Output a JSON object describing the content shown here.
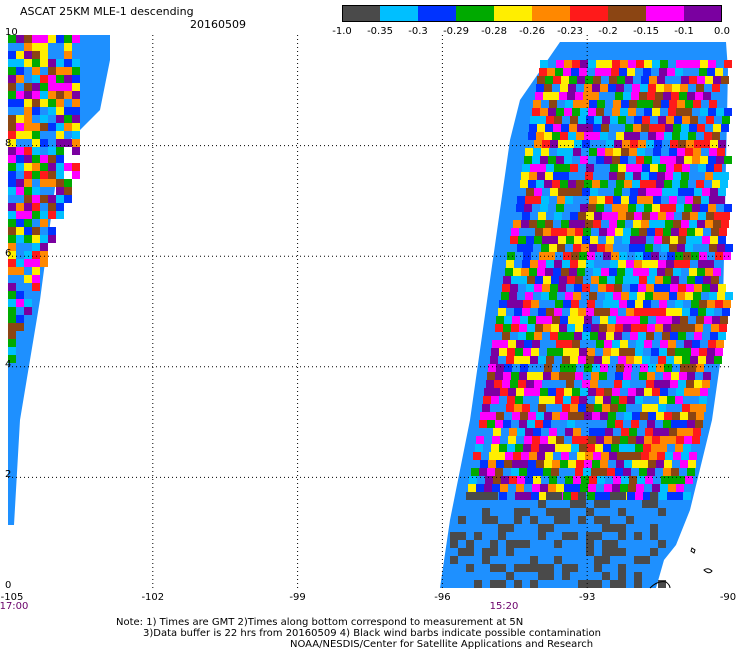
{
  "header": {
    "title": "ASCAT 25KM MLE-1 descending",
    "date": "20160509"
  },
  "colorbar": {
    "colors": [
      "#4a4a4a",
      "#00bfff",
      "#0033ff",
      "#00aa00",
      "#ffee00",
      "#ff8800",
      "#ff1a1a",
      "#8b4513",
      "#ff00ff",
      "#7a00a0"
    ],
    "labels": [
      "-1.0",
      "-0.35",
      "-0.3",
      "-0.29",
      "-0.28",
      "-0.26",
      "-0.23",
      "-0.2",
      "-0.15",
      "-0.1",
      "0.0"
    ]
  },
  "map": {
    "lat_labels": [
      "10",
      "8",
      "6",
      "4",
      "2",
      "0"
    ],
    "lon_labels": [
      "-105",
      "-102",
      "-99",
      "-96",
      "-93",
      "-90"
    ],
    "time_labels": [
      "17:00",
      "15:20"
    ],
    "swath_fill": "#1e90ff",
    "grid_color": "#000000"
  },
  "notes": {
    "line1": "Note: 1) Times are GMT 2)Times along bottom correspond to measurement at 5N",
    "line2": "3)Data buffer is 22 hrs from 20160509 4) Black wind barbs indicate possible contamination",
    "line3": "NOAA/NESDIS/Center for Satellite Applications and Research"
  }
}
